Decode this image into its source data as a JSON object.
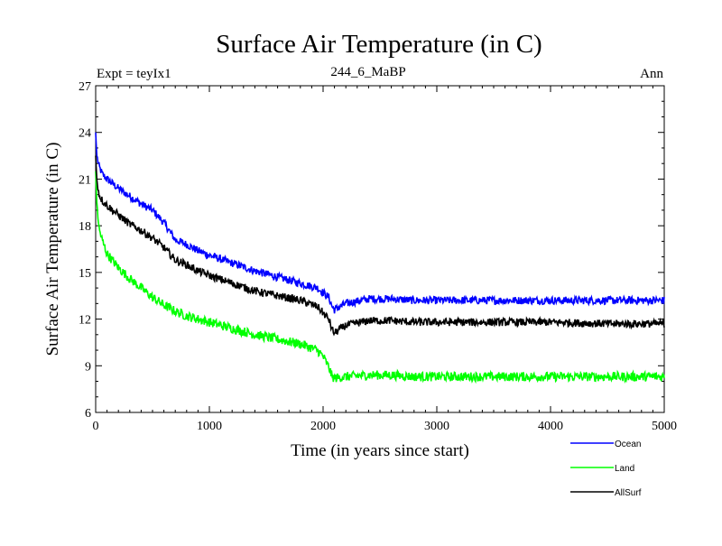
{
  "chart_data": {
    "type": "line",
    "title": "Surface Air Temperature (in C)",
    "subtitle_left": "Expt = teyIx1",
    "subtitle_center": "244_6_MaBP",
    "subtitle_right": "Ann",
    "xlabel": "Time (in years since start)",
    "ylabel": "Surface Air Temperature (in C)",
    "xlim": [
      0,
      5000
    ],
    "ylim": [
      6,
      27
    ],
    "xticks": [
      0,
      1000,
      2000,
      3000,
      4000,
      5000
    ],
    "yticks": [
      6,
      9,
      12,
      15,
      18,
      21,
      24,
      27
    ],
    "xtick_labels": [
      "0",
      "1000",
      "2000",
      "3000",
      "4000",
      "5000"
    ],
    "ytick_labels": [
      "6",
      "9",
      "12",
      "15",
      "18",
      "21",
      "24",
      "27"
    ],
    "legend_position": "bottom-right, outside plot",
    "series": [
      {
        "name": "Ocean",
        "color": "#0000ff",
        "noise": 0.25,
        "x": [
          0,
          10,
          30,
          60,
          100,
          200,
          300,
          400,
          500,
          600,
          700,
          800,
          900,
          1000,
          1200,
          1400,
          1600,
          1800,
          1950,
          2050,
          2080,
          2100,
          2200,
          2400,
          2600,
          2800,
          3000,
          3500,
          4000,
          4500,
          5000
        ],
        "values": [
          24.0,
          22.5,
          21.8,
          21.3,
          21.0,
          20.4,
          19.9,
          19.4,
          19.0,
          18.2,
          17.1,
          16.8,
          16.4,
          16.1,
          15.6,
          15.1,
          14.7,
          14.3,
          14.0,
          13.4,
          12.8,
          12.6,
          13.0,
          13.3,
          13.3,
          13.2,
          13.2,
          13.2,
          13.2,
          13.2,
          13.2
        ]
      },
      {
        "name": "Land",
        "color": "#00ff00",
        "noise": 0.3,
        "x": [
          0,
          10,
          30,
          60,
          100,
          200,
          300,
          400,
          500,
          600,
          700,
          800,
          900,
          1000,
          1200,
          1400,
          1600,
          1800,
          1950,
          2000,
          2050,
          2080,
          2100,
          2200,
          2400,
          2600,
          2800,
          3000,
          3500,
          4000,
          4500,
          5000
        ],
        "values": [
          21.5,
          19.5,
          17.8,
          17.0,
          16.2,
          15.3,
          14.6,
          14.0,
          13.4,
          12.9,
          12.5,
          12.2,
          12.0,
          11.8,
          11.4,
          11.0,
          10.7,
          10.4,
          10.0,
          9.6,
          8.9,
          8.3,
          8.2,
          8.3,
          8.4,
          8.4,
          8.3,
          8.3,
          8.3,
          8.3,
          8.3,
          8.3
        ]
      },
      {
        "name": "AllSurf",
        "color": "#000000",
        "noise": 0.25,
        "x": [
          0,
          10,
          30,
          60,
          100,
          200,
          300,
          400,
          500,
          600,
          700,
          800,
          900,
          1000,
          1200,
          1400,
          1600,
          1800,
          1950,
          2050,
          2080,
          2100,
          2200,
          2400,
          2600,
          2800,
          3000,
          3500,
          4000,
          4500,
          5000
        ],
        "values": [
          22.5,
          21.0,
          20.0,
          19.6,
          19.3,
          18.7,
          18.1,
          17.7,
          17.2,
          16.6,
          15.8,
          15.5,
          15.1,
          14.8,
          14.3,
          13.8,
          13.5,
          13.2,
          12.8,
          12.0,
          11.3,
          11.1,
          11.6,
          11.9,
          11.9,
          11.8,
          11.8,
          11.8,
          11.8,
          11.7,
          11.7
        ]
      }
    ]
  }
}
